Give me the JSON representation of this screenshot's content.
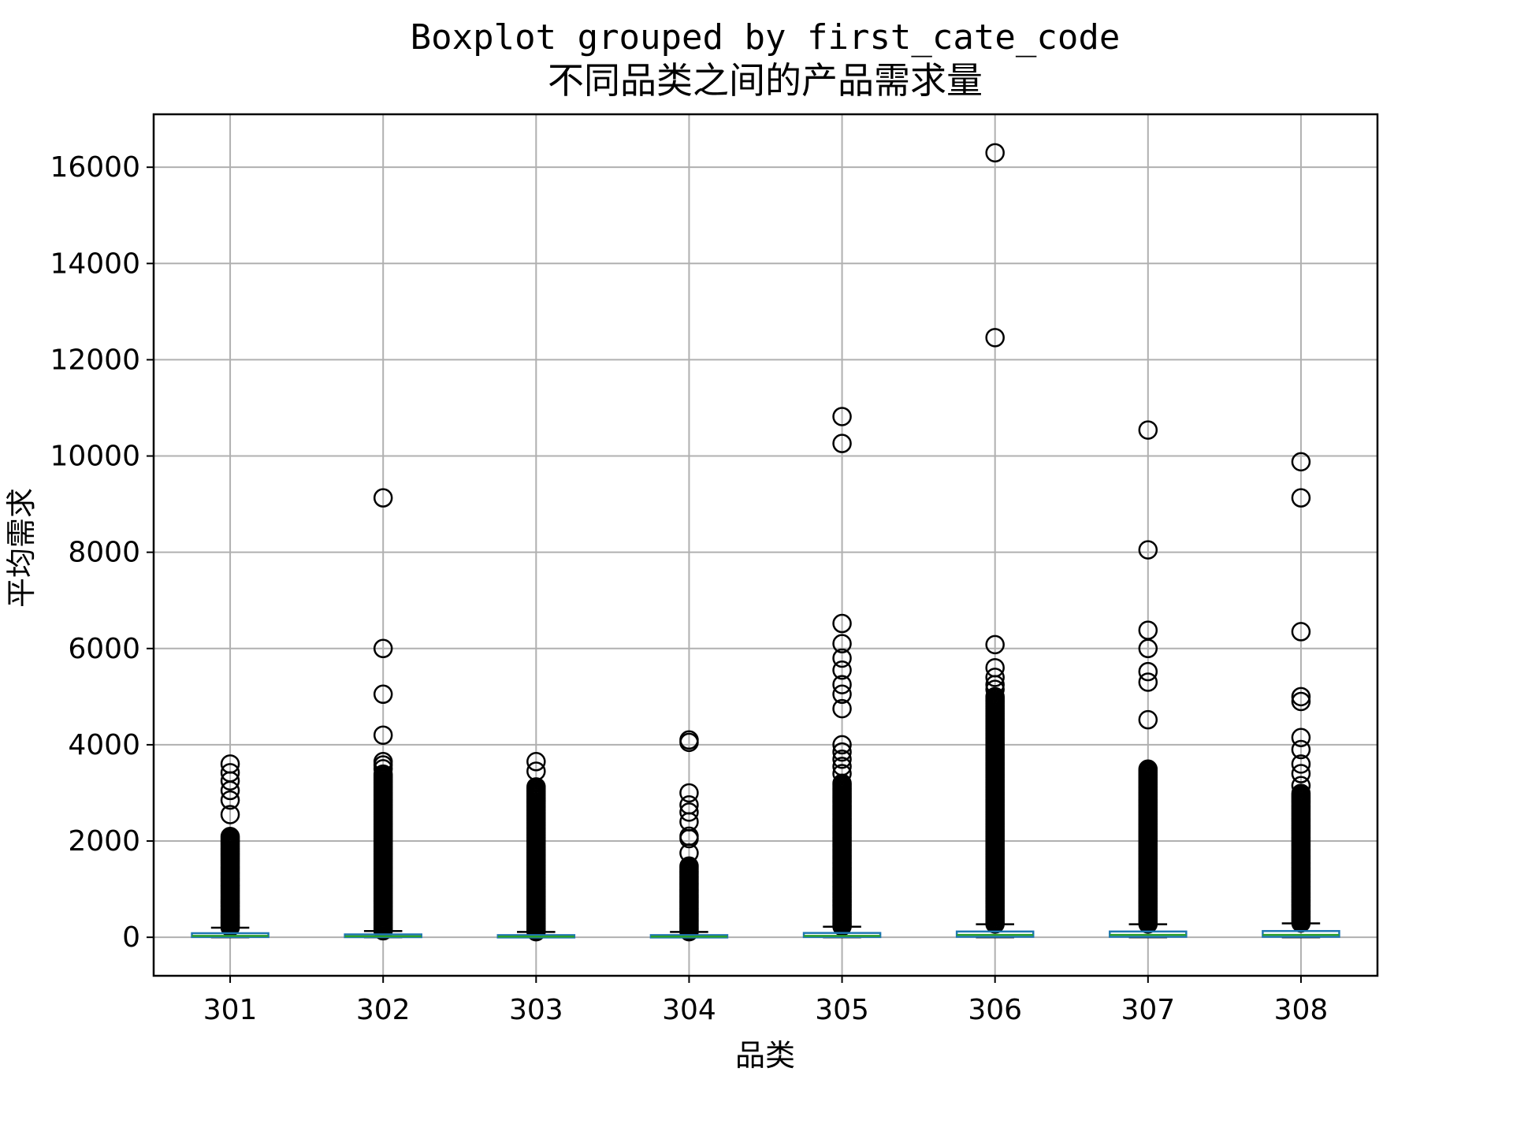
{
  "chart_data": {
    "type": "boxplot",
    "title": "Boxplot grouped by first_cate_code",
    "subtitle": "不同品类之间的产品需求量",
    "xlabel": "品类",
    "ylabel": "平均需求",
    "ylim": [
      -800,
      17100
    ],
    "yticks": [
      0,
      2000,
      4000,
      6000,
      8000,
      10000,
      12000,
      14000,
      16000
    ],
    "grid": true,
    "colors": {
      "box": "#1f77b4",
      "median": "#2ca02c",
      "whisker": "#000000",
      "flier": "#000000",
      "grid": "#b0b0b0"
    },
    "categories": [
      "301",
      "302",
      "303",
      "304",
      "305",
      "306",
      "307",
      "308"
    ],
    "boxes": [
      {
        "q1": 5,
        "median": 30,
        "q3": 85,
        "whislo": 0,
        "whishi": 200,
        "flier_range": [
          205,
          2100
        ],
        "fliers": [
          2550,
          2850,
          3050,
          3250,
          3420,
          3600
        ]
      },
      {
        "q1": 3,
        "median": 20,
        "q3": 60,
        "whislo": 0,
        "whishi": 130,
        "flier_range": [
          135,
          3400
        ],
        "fliers": [
          3500,
          3580,
          3650,
          4200,
          5050,
          6000,
          9130
        ]
      },
      {
        "q1": 2,
        "median": 15,
        "q3": 45,
        "whislo": 0,
        "whishi": 110,
        "flier_range": [
          115,
          3150
        ],
        "fliers": [
          3450,
          3650
        ]
      },
      {
        "q1": 2,
        "median": 15,
        "q3": 45,
        "whislo": 0,
        "whishi": 110,
        "flier_range": [
          115,
          1500
        ],
        "fliers": [
          1750,
          2050,
          2100,
          2400,
          2600,
          2750,
          3000,
          4050,
          4100
        ]
      },
      {
        "q1": 5,
        "median": 30,
        "q3": 90,
        "whislo": 0,
        "whishi": 220,
        "flier_range": [
          225,
          3200
        ],
        "fliers": [
          3400,
          3550,
          3700,
          3850,
          4000,
          4750,
          5050,
          5250,
          5550,
          5800,
          6100,
          6520,
          10260,
          10820
        ]
      },
      {
        "q1": 10,
        "median": 50,
        "q3": 120,
        "whislo": 0,
        "whishi": 270,
        "flier_range": [
          275,
          5000
        ],
        "fliers": [
          5150,
          5250,
          5400,
          5600,
          6080,
          12460,
          16300
        ]
      },
      {
        "q1": 10,
        "median": 50,
        "q3": 120,
        "whislo": 0,
        "whishi": 270,
        "flier_range": [
          275,
          3500
        ],
        "fliers": [
          4520,
          5300,
          5520,
          6000,
          6380,
          8050,
          10540
        ]
      },
      {
        "q1": 10,
        "median": 50,
        "q3": 130,
        "whislo": 0,
        "whishi": 290,
        "flier_range": [
          295,
          3000
        ],
        "fliers": [
          3150,
          3400,
          3600,
          3900,
          4150,
          4900,
          5000,
          6350,
          9130,
          9880
        ]
      }
    ]
  }
}
